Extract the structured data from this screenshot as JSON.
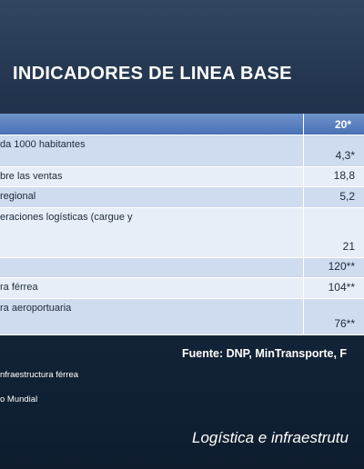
{
  "title": "INDICADORES DE LINEA BASE",
  "table": {
    "header": {
      "value": "20*"
    },
    "rows": [
      {
        "label": "da 1000 habitantes",
        "value": "4,3*"
      },
      {
        "label": "bre las ventas",
        "value": "18,8"
      },
      {
        "label": "regional",
        "value": "5,2"
      },
      {
        "label": "eraciones logísticas (cargue y",
        "value": "21"
      },
      {
        "value": "120**"
      },
      {
        "label": "ra férrea",
        "value": "104**"
      },
      {
        "label": "ra aeroportuaria",
        "value": "76**"
      }
    ]
  },
  "source": "Fuente: DNP, MinTransporte, F",
  "notes": [
    "nfraestructura férrea",
    "o Mundial"
  ],
  "footer": "Logística e infraestrutu"
}
